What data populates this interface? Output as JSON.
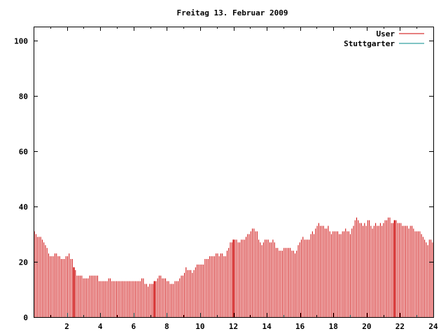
{
  "chart_data": {
    "type": "bar",
    "title": "Freitag 13. Februar 2009",
    "xlabel": "",
    "ylabel": "",
    "xlim": [
      0,
      24
    ],
    "ylim": [
      0,
      105
    ],
    "grid": false,
    "legend_position": "top-right",
    "x_ticks": [
      "2",
      "4",
      "6",
      "8",
      "10",
      "12",
      "14",
      "16",
      "18",
      "20",
      "22",
      "24"
    ],
    "y_ticks": [
      "0",
      "20",
      "40",
      "60",
      "80",
      "100"
    ],
    "series": [
      {
        "name": "User",
        "color": "#cc0000",
        "values": [
          31,
          30,
          29,
          29,
          29,
          28,
          27,
          26,
          25,
          23,
          22,
          22,
          22,
          23,
          23,
          22,
          22,
          21,
          21,
          21,
          22,
          22,
          23,
          21,
          21,
          18,
          17,
          15,
          15,
          15,
          15,
          14,
          14,
          14,
          14,
          15,
          15,
          15,
          15,
          15,
          15,
          13,
          13,
          13,
          13,
          13,
          13,
          14,
          14,
          13,
          13,
          13,
          13,
          13,
          13,
          13,
          13,
          13,
          13,
          13,
          13,
          13,
          13,
          13,
          13,
          13,
          13,
          13,
          14,
          14,
          12,
          12,
          11,
          12,
          12,
          12,
          13,
          13,
          14,
          15,
          15,
          14,
          14,
          14,
          13,
          13,
          12,
          12,
          12,
          13,
          13,
          13,
          14,
          15,
          15,
          16,
          18,
          17,
          17,
          17,
          16,
          17,
          18,
          19,
          19,
          19,
          19,
          19,
          21,
          21,
          21,
          22,
          22,
          22,
          22,
          23,
          23,
          22,
          23,
          23,
          22,
          22,
          24,
          25,
          27,
          27,
          28,
          28,
          28,
          27,
          27,
          28,
          28,
          28,
          29,
          30,
          30,
          31,
          32,
          32,
          31,
          31,
          28,
          27,
          26,
          27,
          28,
          28,
          28,
          27,
          27,
          28,
          27,
          25,
          25,
          24,
          24,
          24,
          25,
          25,
          25,
          25,
          25,
          24,
          24,
          23,
          24,
          26,
          27,
          28,
          29,
          28,
          28,
          28,
          28,
          30,
          31,
          30,
          32,
          33,
          34,
          33,
          33,
          33,
          32,
          32,
          33,
          31,
          30,
          31,
          31,
          31,
          31,
          30,
          30,
          31,
          31,
          32,
          31,
          31,
          30,
          32,
          33,
          35,
          36,
          35,
          34,
          34,
          33,
          34,
          33,
          35,
          35,
          33,
          32,
          33,
          34,
          33,
          33,
          34,
          33,
          34,
          35,
          35,
          36,
          36,
          34,
          34,
          35,
          35,
          34,
          34,
          34,
          33,
          33,
          33,
          33,
          32,
          33,
          33,
          32,
          31,
          31,
          31,
          31,
          30,
          29,
          28,
          27,
          26,
          28,
          28,
          27
        ]
      },
      {
        "name": "Stuttgarter",
        "color": "#008b8b",
        "values": []
      }
    ],
    "highlight_color": "#cc0000"
  }
}
